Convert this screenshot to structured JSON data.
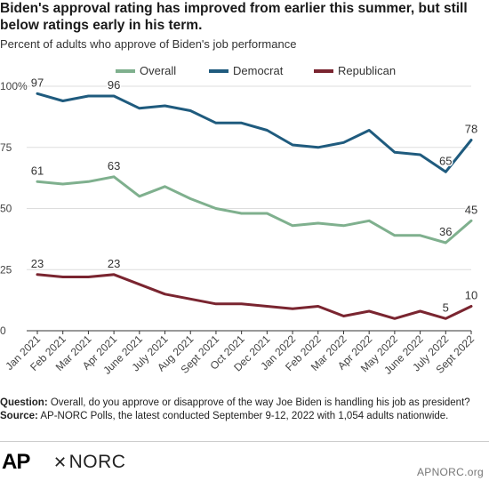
{
  "header": {
    "title": "Biden's approval rating has improved from earlier this summer, but still below ratings early in his term.",
    "subtitle": "Percent of adults who approve of Biden's job performance"
  },
  "legend": [
    {
      "label": "Overall",
      "color": "#7fb08e"
    },
    {
      "label": "Democrat",
      "color": "#1f5b7e"
    },
    {
      "label": "Republican",
      "color": "#7a2530"
    }
  ],
  "chart_data": {
    "type": "line",
    "categories": [
      "Jan 2021",
      "Feb 2021",
      "Mar 2021",
      "Apr 2021",
      "June 2021",
      "July 2021",
      "Aug 2021",
      "Sept 2021",
      "Oct 2021",
      "Dec 2021",
      "Jan 2022",
      "Feb 2022",
      "Mar 2022",
      "Apr 2022",
      "May 2022",
      "June 2022",
      "July 2022",
      "Sept 2022"
    ],
    "series": [
      {
        "name": "Overall",
        "color": "#7fb08e",
        "values": [
          61,
          60,
          61,
          63,
          55,
          59,
          54,
          50,
          48,
          48,
          43,
          44,
          43,
          45,
          39,
          39,
          36,
          45
        ]
      },
      {
        "name": "Democrat",
        "color": "#1f5b7e",
        "values": [
          97,
          94,
          96,
          96,
          91,
          92,
          90,
          85,
          85,
          82,
          76,
          75,
          77,
          82,
          73,
          72,
          65,
          78
        ]
      },
      {
        "name": "Republican",
        "color": "#7a2530",
        "values": [
          23,
          22,
          22,
          23,
          19,
          15,
          13,
          11,
          11,
          10,
          9,
          10,
          6,
          8,
          5,
          8,
          5,
          10
        ]
      }
    ],
    "y_ticks": [
      "100%",
      "75",
      "50",
      "25",
      "0"
    ],
    "ylim": [
      0,
      100
    ],
    "data_labels": [
      {
        "series": 1,
        "index": 0,
        "text": "97",
        "pos": "above"
      },
      {
        "series": 1,
        "index": 3,
        "text": "96",
        "pos": "above"
      },
      {
        "series": 1,
        "index": 16,
        "text": "65",
        "pos": "above"
      },
      {
        "series": 1,
        "index": 17,
        "text": "78",
        "pos": "above"
      },
      {
        "series": 0,
        "index": 0,
        "text": "61",
        "pos": "above"
      },
      {
        "series": 0,
        "index": 3,
        "text": "63",
        "pos": "above"
      },
      {
        "series": 0,
        "index": 16,
        "text": "36",
        "pos": "above"
      },
      {
        "series": 0,
        "index": 17,
        "text": "45",
        "pos": "above"
      },
      {
        "series": 2,
        "index": 0,
        "text": "23",
        "pos": "above"
      },
      {
        "series": 2,
        "index": 3,
        "text": "23",
        "pos": "above"
      },
      {
        "series": 2,
        "index": 16,
        "text": "5",
        "pos": "above"
      },
      {
        "series": 2,
        "index": 17,
        "text": "10",
        "pos": "above"
      }
    ],
    "grid": true
  },
  "notes": {
    "question_label": "Question:",
    "question_text": " Overall, do you approve or disapprove of the way Joe Biden is handling his job as president?",
    "source_label": "Source:",
    "source_text": " AP-NORC Polls, the latest conducted September 9-12, 2022 with 1,054 adults nationwide."
  },
  "footer": {
    "ap_logo": "AP",
    "norc_mark": "✕",
    "norc_logo": "NORC",
    "site": "APNORC.org"
  }
}
